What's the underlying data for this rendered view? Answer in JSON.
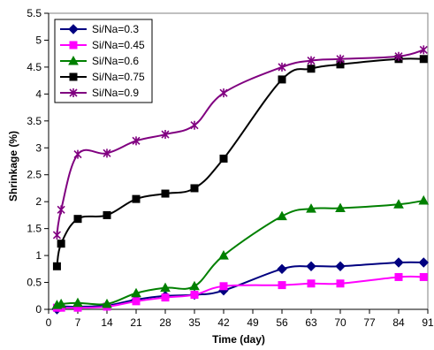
{
  "chart_data": {
    "type": "line",
    "xlabel": "Time (day)",
    "ylabel": "Shrinkage (%)",
    "xlim": [
      0,
      91
    ],
    "ylim": [
      0,
      5.5
    ],
    "xticks": [
      "0",
      "7",
      "14",
      "21",
      "28",
      "35",
      "42",
      "49",
      "56",
      "63",
      "70",
      "77",
      "84",
      "91"
    ],
    "yticks": [
      "0",
      "0.5",
      "1",
      "1.5",
      "2",
      "2.5",
      "3",
      "3.5",
      "4",
      "4.5",
      "5",
      "5.5"
    ],
    "grid": false,
    "legend_position": "top-left",
    "series": [
      {
        "name": "Si/Na=0.3",
        "color": "#000080",
        "marker": "diamond",
        "x": [
          2,
          3,
          7,
          14,
          21,
          28,
          35,
          42,
          56,
          63,
          70,
          84,
          90
        ],
        "y": [
          0.0,
          0.05,
          0.05,
          0.07,
          0.18,
          0.25,
          0.27,
          0.35,
          0.75,
          0.8,
          0.8,
          0.87,
          0.87
        ]
      },
      {
        "name": "Si/Na=0.45",
        "color": "#FF00FF",
        "marker": "square",
        "x": [
          2,
          3,
          7,
          14,
          21,
          28,
          35,
          42,
          56,
          63,
          70,
          84,
          90
        ],
        "y": [
          0.03,
          0.03,
          0.03,
          0.05,
          0.15,
          0.22,
          0.27,
          0.43,
          0.45,
          0.48,
          0.48,
          0.6,
          0.6
        ]
      },
      {
        "name": "Si/Na=0.6",
        "color": "#008000",
        "marker": "triangle",
        "x": [
          2,
          3,
          7,
          14,
          21,
          28,
          35,
          42,
          56,
          63,
          70,
          84,
          90
        ],
        "y": [
          0.08,
          0.1,
          0.12,
          0.1,
          0.3,
          0.4,
          0.43,
          1.0,
          1.73,
          1.87,
          1.88,
          1.95,
          2.02
        ]
      },
      {
        "name": "Si/Na=0.75",
        "color": "#000000",
        "marker": "square",
        "x": [
          2,
          3,
          7,
          14,
          21,
          28,
          35,
          42,
          56,
          63,
          70,
          84,
          90
        ],
        "y": [
          0.8,
          1.22,
          1.68,
          1.75,
          2.05,
          2.15,
          2.25,
          2.8,
          4.27,
          4.47,
          4.55,
          4.65,
          4.65
        ]
      },
      {
        "name": "Si/Na=0.9",
        "color": "#800080",
        "marker": "star",
        "x": [
          2,
          3,
          7,
          14,
          21,
          28,
          35,
          42,
          56,
          63,
          70,
          84,
          90
        ],
        "y": [
          1.38,
          1.85,
          2.88,
          2.9,
          3.13,
          3.25,
          3.42,
          4.02,
          4.5,
          4.62,
          4.65,
          4.7,
          4.82
        ]
      }
    ]
  }
}
